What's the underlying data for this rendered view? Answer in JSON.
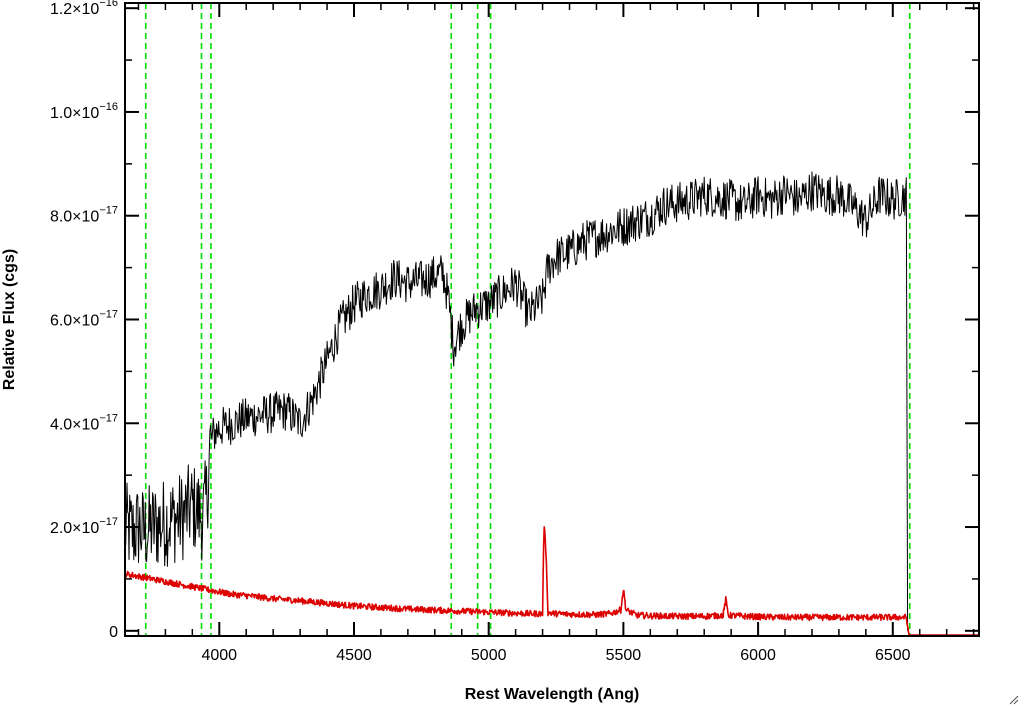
{
  "chart_data": {
    "type": "line",
    "title": "",
    "xlabel": "Rest Wavelength (Ang)",
    "ylabel": "Relative Flux (cgs)",
    "xlim": [
      3650,
      6820
    ],
    "ylim": [
      -1e-18,
      1.21e-16
    ],
    "x_ticks": [
      {
        "value": 4000,
        "label": "4000"
      },
      {
        "value": 4500,
        "label": "4500"
      },
      {
        "value": 5000,
        "label": "5000"
      },
      {
        "value": 5500,
        "label": "5500"
      },
      {
        "value": 6000,
        "label": "6000"
      },
      {
        "value": 6500,
        "label": "6500"
      }
    ],
    "y_ticks": [
      {
        "value": 0,
        "label": "0",
        "exponent": ""
      },
      {
        "value": 2e-17,
        "label": "2.0×10",
        "exponent": "−17"
      },
      {
        "value": 4e-17,
        "label": "4.0×10",
        "exponent": "−17"
      },
      {
        "value": 6e-17,
        "label": "6.0×10",
        "exponent": "−17"
      },
      {
        "value": 8e-17,
        "label": "8.0×10",
        "exponent": "−17"
      },
      {
        "value": 1e-16,
        "label": "1.0×10",
        "exponent": "−16"
      },
      {
        "value": 1.2e-16,
        "label": "1.2×10",
        "exponent": "−16"
      }
    ],
    "reference_lines": [
      3727,
      3934,
      3969,
      4861,
      4959,
      5007,
      6563
    ],
    "series": [
      {
        "color": "#000000",
        "x": [
          3650,
          3680,
          3700,
          3720,
          3750,
          3780,
          3800,
          3830,
          3860,
          3880,
          3900,
          3920,
          3940,
          3955,
          3965,
          3980,
          4000,
          4050,
          4100,
          4150,
          4200,
          4250,
          4300,
          4350,
          4400,
          4450,
          4500,
          4550,
          4600,
          4650,
          4700,
          4750,
          4800,
          4830,
          4850,
          4870,
          4900,
          4950,
          5000,
          5050,
          5100,
          5150,
          5200,
          5220,
          5250,
          5300,
          5350,
          5400,
          5450,
          5500,
          5550,
          5600,
          5650,
          5700,
          5750,
          5800,
          5850,
          5900,
          5950,
          6000,
          6050,
          6100,
          6150,
          6200,
          6250,
          6300,
          6350,
          6400,
          6450,
          6500,
          6550
        ],
        "y": [
          2e-17,
          1.9e-17,
          2e-17,
          1.9e-17,
          2e-17,
          2.05e-17,
          2.1e-17,
          2.15e-17,
          2.2e-17,
          2.3e-17,
          2.4e-17,
          2.3e-17,
          2.2e-17,
          2.6e-17,
          3.6e-17,
          3.8e-17,
          3.9e-17,
          4e-17,
          4.1e-17,
          4.15e-17,
          4.2e-17,
          4.25e-17,
          4e-17,
          4.5e-17,
          5.2e-17,
          5.9e-17,
          6.3e-17,
          6.5e-17,
          6.6e-17,
          6.8e-17,
          6.7e-17,
          6.75e-17,
          6.85e-17,
          6.9e-17,
          6.4e-17,
          5.5e-17,
          5.9e-17,
          6.2e-17,
          6.3e-17,
          6.5e-17,
          6.7e-17,
          6.1e-17,
          6.4e-17,
          7e-17,
          7.2e-17,
          7.3e-17,
          7.5e-17,
          7.6e-17,
          7.7e-17,
          7.8e-17,
          7.9e-17,
          8e-17,
          8.2e-17,
          8.25e-17,
          8.3e-17,
          8.4e-17,
          8.35e-17,
          8.3e-17,
          8.2e-17,
          8.4e-17,
          8.3e-17,
          8.45e-17,
          8.3e-17,
          8.5e-17,
          8.4e-17,
          8.4e-17,
          8.2e-17,
          7.9e-17,
          8.4e-17,
          8.3e-17,
          8.4e-17
        ],
        "noise": 4e-18
      },
      {
        "color": "#dd0000",
        "x": [
          3650,
          3700,
          3750,
          3800,
          3850,
          3900,
          3950,
          4000,
          4050,
          4100,
          4150,
          4200,
          4300,
          4400,
          4500,
          4600,
          4700,
          4800,
          4900,
          5000,
          5100,
          5150,
          5200,
          5205,
          5210,
          5215,
          5220,
          5250,
          5300,
          5400,
          5450,
          5490,
          5500,
          5510,
          5550,
          5600,
          5700,
          5800,
          5870,
          5880,
          5890,
          5950,
          6000,
          6100,
          6200,
          6300,
          6400,
          6500,
          6550,
          6560,
          6820
        ],
        "y": [
          1.1e-17,
          1.05e-17,
          1e-17,
          9.5e-18,
          9e-18,
          8.5e-18,
          8e-18,
          7.5e-18,
          7e-18,
          6.8e-18,
          6.5e-18,
          6.2e-18,
          5.8e-18,
          5.3e-18,
          4.8e-18,
          4.5e-18,
          4.2e-18,
          4e-18,
          3.8e-18,
          3.6e-18,
          3.4e-18,
          3.3e-18,
          3.3e-18,
          2e-17,
          1.8e-17,
          1.2e-17,
          3.5e-18,
          3.3e-18,
          3.2e-18,
          3.1e-18,
          3.3e-18,
          4e-18,
          8e-18,
          4e-18,
          3e-18,
          2.9e-18,
          2.8e-18,
          2.8e-18,
          3e-18,
          6e-18,
          3e-18,
          2.8e-18,
          2.7e-18,
          2.6e-18,
          2.6e-18,
          2.6e-18,
          2.6e-18,
          2.6e-18,
          2.6e-18,
          -8e-19,
          -8e-19
        ],
        "noise": 6e-19
      }
    ],
    "grid": false,
    "legend": "none"
  }
}
